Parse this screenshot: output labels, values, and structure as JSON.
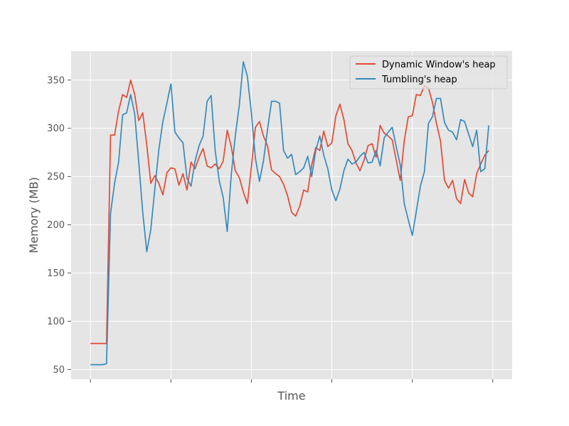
{
  "chart_data": {
    "type": "line",
    "title": "",
    "xlabel": "Time",
    "ylabel": "Memory (MB)",
    "ylim": [
      40,
      380
    ],
    "xlim": [
      -4.8,
      104.8
    ],
    "yticks": [
      50,
      100,
      150,
      200,
      250,
      300,
      350
    ],
    "ytick_labels": [
      "50",
      "100",
      "150",
      "200",
      "250",
      "300",
      "350"
    ],
    "xticks": [
      0,
      20,
      40,
      60,
      80,
      100
    ],
    "grid": true,
    "legend_position": "top-right",
    "colors": {
      "background": "#e5e5e5",
      "grid": "#ffffff",
      "dynamic": "#e24a33",
      "tumbling": "#348abd",
      "tick": "#555555"
    },
    "series": [
      {
        "name": "Dynamic Window's heap",
        "x": [
          0,
          1,
          2,
          3,
          4,
          5,
          6,
          7,
          8,
          9,
          10,
          11,
          12,
          13,
          14,
          15,
          16,
          17,
          18,
          19,
          20,
          21,
          22,
          23,
          24,
          25,
          26,
          27,
          28,
          29,
          30,
          31,
          32,
          33,
          34,
          35,
          36,
          37,
          38,
          39,
          40,
          41,
          42,
          43,
          44,
          45,
          46,
          47,
          48,
          49,
          50,
          51,
          52,
          53,
          54,
          55,
          56,
          57,
          58,
          59,
          60,
          61,
          62,
          63,
          64,
          65,
          66,
          67,
          68,
          69,
          70,
          71,
          72,
          73,
          74,
          75,
          76,
          77,
          78,
          79,
          80,
          81,
          82,
          83,
          84,
          85,
          86,
          87,
          88,
          89,
          90,
          91,
          92,
          93,
          94,
          95,
          96,
          97,
          98,
          99,
          100
        ],
        "values": [
          77,
          77,
          77,
          77,
          77,
          293,
          293,
          318,
          335,
          332,
          350,
          335,
          308,
          316,
          283,
          243,
          251,
          243,
          231,
          254,
          259,
          258,
          241,
          253,
          236,
          265,
          258,
          270,
          279,
          261,
          259,
          263,
          258,
          266,
          298,
          281,
          256,
          249,
          234,
          222,
          260,
          301,
          307,
          292,
          282,
          257,
          253,
          250,
          242,
          230,
          213,
          209,
          219,
          236,
          234,
          262,
          280,
          277,
          297,
          281,
          285,
          313,
          325,
          309,
          284,
          277,
          264,
          256,
          267,
          282,
          284,
          270,
          303,
          295,
          292,
          288,
          267,
          246,
          287,
          312,
          313,
          335,
          334,
          344,
          342,
          327,
          305,
          287,
          246,
          238,
          246,
          227,
          222,
          247,
          233,
          229,
          253,
          263,
          272,
          277,
          null
        ]
      },
      {
        "name": "Tumbling's heap",
        "x": [
          0,
          1,
          2,
          3,
          4,
          5,
          6,
          7,
          8,
          9,
          10,
          11,
          12,
          13,
          14,
          15,
          16,
          17,
          18,
          19,
          20,
          21,
          22,
          23,
          24,
          25,
          26,
          27,
          28,
          29,
          30,
          31,
          32,
          33,
          34,
          35,
          36,
          37,
          38,
          39,
          40,
          41,
          42,
          43,
          44,
          45,
          46,
          47,
          48,
          49,
          50,
          51,
          52,
          53,
          54,
          55,
          56,
          57,
          58,
          59,
          60,
          61,
          62,
          63,
          64,
          65,
          66,
          67,
          68,
          69,
          70,
          71,
          72,
          73,
          74,
          75,
          76,
          77,
          78,
          79,
          80,
          81,
          82,
          83,
          84,
          85,
          86,
          87,
          88,
          89,
          90,
          91,
          92,
          93,
          94,
          95,
          96,
          97,
          98,
          99,
          100
        ],
        "values": [
          55,
          55,
          55,
          55,
          56,
          212,
          243,
          265,
          314,
          316,
          335,
          315,
          265,
          213,
          172,
          195,
          237,
          278,
          307,
          326,
          346,
          296,
          290,
          285,
          248,
          240,
          266,
          282,
          292,
          328,
          334,
          277,
          246,
          228,
          193,
          252,
          292,
          324,
          369,
          354,
          316,
          269,
          245,
          266,
          298,
          328,
          328,
          326,
          277,
          269,
          273,
          252,
          255,
          259,
          271,
          250,
          277,
          292,
          272,
          258,
          236,
          225,
          237,
          256,
          268,
          263,
          265,
          271,
          275,
          264,
          265,
          277,
          261,
          290,
          296,
          301,
          281,
          262,
          222,
          205,
          189,
          214,
          240,
          255,
          305,
          312,
          331,
          331,
          306,
          298,
          296,
          288,
          309,
          307,
          294,
          281,
          298,
          255,
          258,
          303,
          null
        ]
      }
    ]
  }
}
